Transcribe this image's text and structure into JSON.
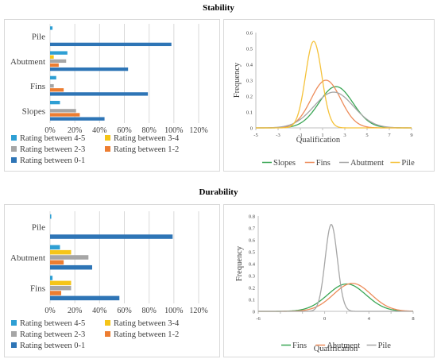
{
  "titles": {
    "stability": "Stability",
    "durability": "Durability"
  },
  "colors": {
    "r45": "#2e9fd4",
    "r34": "#f5c518",
    "r23": "#a6a6a6",
    "r12": "#ed7d31",
    "r01": "#2e75b6",
    "slopes": "#3aa655",
    "fins": "#ed8c5a",
    "abutment": "#a6a6a6",
    "pile": "#f5c23a",
    "fins_d": "#3aa655",
    "abutment_d": "#ed8c5a",
    "pile_d": "#a6a6a6",
    "grid": "#d9d9d9",
    "axis": "#bfbfbf",
    "text": "#404040"
  },
  "chart_data": [
    {
      "id": "stability-bars",
      "type": "bar",
      "orientation": "horizontal",
      "categories": [
        "Pile",
        "Abutment",
        "Fins",
        "Slopes"
      ],
      "series": [
        {
          "name": "Rating between 4-5",
          "color_key": "r45",
          "values": [
            2,
            14,
            5,
            8
          ]
        },
        {
          "name": "Rating between 3-4",
          "color_key": "r34",
          "values": [
            0,
            3,
            0,
            0
          ]
        },
        {
          "name": "Rating between 2-3",
          "color_key": "r23",
          "values": [
            0,
            13,
            3,
            21
          ]
        },
        {
          "name": "Rating between 1-2",
          "color_key": "r12",
          "values": [
            0,
            7,
            11,
            24
          ]
        },
        {
          "name": "Rating between 0-1",
          "color_key": "r01",
          "values": [
            98,
            63,
            79,
            44
          ]
        }
      ],
      "xticks": [
        "0%",
        "20%",
        "40%",
        "60%",
        "80%",
        "100%",
        "120%"
      ],
      "xlim": [
        0,
        120
      ],
      "legend_position": "bottom",
      "grid": true
    },
    {
      "id": "stability-curves",
      "type": "line",
      "xlabel": "Qualification",
      "ylabel": "Frequency",
      "xlim": [
        -5,
        9
      ],
      "ylim": [
        0,
        0.6
      ],
      "xticks": [
        "-5",
        "-3",
        "-1",
        "1",
        "3",
        "5",
        "7",
        "9"
      ],
      "yticks": [
        "0",
        "0.1",
        "0.2",
        "0.3",
        "0.4",
        "0.5",
        "0.6"
      ],
      "series": [
        {
          "name": "Slopes",
          "color_key": "slopes",
          "mean": 2.2,
          "peak": 0.26,
          "sd": 1.53
        },
        {
          "name": "Fins",
          "color_key": "fins",
          "mean": 1.3,
          "peak": 0.3,
          "sd": 1.33
        },
        {
          "name": "Abutment",
          "color_key": "abutment",
          "mean": 2.0,
          "peak": 0.225,
          "sd": 1.77
        },
        {
          "name": "Pile",
          "color_key": "pile",
          "mean": 0.2,
          "peak": 0.545,
          "sd": 0.73
        }
      ],
      "legend_position": "bottom",
      "grid": false
    },
    {
      "id": "durability-bars",
      "type": "bar",
      "orientation": "horizontal",
      "categories": [
        "Pile",
        "Abutment",
        "Fins"
      ],
      "series": [
        {
          "name": "Rating between 4-5",
          "color_key": "r45",
          "values": [
            1,
            8,
            2
          ]
        },
        {
          "name": "Rating between 3-4",
          "color_key": "r34",
          "values": [
            0,
            17,
            17
          ]
        },
        {
          "name": "Rating between 2-3",
          "color_key": "r23",
          "values": [
            0,
            31,
            17
          ]
        },
        {
          "name": "Rating between 1-2",
          "color_key": "r12",
          "values": [
            0,
            11,
            9
          ]
        },
        {
          "name": "Rating between 0-1",
          "color_key": "r01",
          "values": [
            99,
            34,
            56
          ]
        }
      ],
      "xticks": [
        "0%",
        "20%",
        "40%",
        "60%",
        "80%",
        "100%",
        "120%"
      ],
      "xlim": [
        0,
        120
      ],
      "legend_position": "bottom",
      "grid": true
    },
    {
      "id": "durability-curves",
      "type": "line",
      "xlabel": "Qualification",
      "ylabel": "Frequency",
      "xlim": [
        -6,
        8
      ],
      "ylim": [
        0,
        0.8
      ],
      "xticks": [
        "-6",
        "-4",
        "-2",
        "0",
        "2",
        "4",
        "6",
        "8"
      ],
      "yticks": [
        "0",
        "0.1",
        "0.2",
        "0.3",
        "0.4",
        "0.5",
        "0.6",
        "0.7",
        "0.8"
      ],
      "xticks_shown": [
        "-6",
        "",
        "",
        "0",
        "",
        "4",
        "",
        "8"
      ],
      "series": [
        {
          "name": "Fins",
          "color_key": "fins_d",
          "mean": 2.0,
          "peak": 0.23,
          "sd": 1.73
        },
        {
          "name": "Abutment",
          "color_key": "abutment_d",
          "mean": 2.5,
          "peak": 0.235,
          "sd": 1.7
        },
        {
          "name": "Pile",
          "color_key": "pile_d",
          "mean": 0.6,
          "peak": 0.73,
          "sd": 0.55
        }
      ],
      "legend_position": "bottom",
      "grid": false
    }
  ]
}
